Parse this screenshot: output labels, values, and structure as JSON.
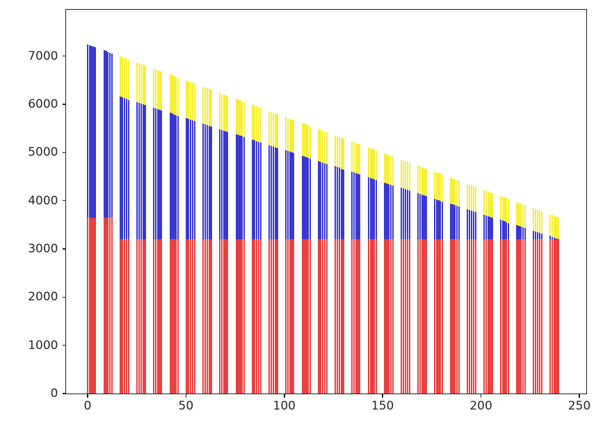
{
  "figure": {
    "background": "#ffffff"
  },
  "chart_data": {
    "type": "bar",
    "subtype": "grouped-stacked-thin-bars",
    "title": "",
    "xlabel": "",
    "ylabel": "",
    "grid": false,
    "legend": false,
    "x_ticks": [
      0,
      50,
      100,
      150,
      200,
      250
    ],
    "y_ticks": [
      0,
      1000,
      2000,
      3000,
      4000,
      5000,
      6000,
      7000
    ],
    "xlim": [
      -11.3,
      253.9
    ],
    "ylim": [
      -14,
      7975
    ],
    "bars_per_group": 5,
    "bar_pitch": 1.0,
    "bar_width": 0.8,
    "series_names": [
      "red-bottom",
      "blue-middle",
      "yellow-top"
    ],
    "series_colors": {
      "bottom": "#e84141",
      "middle": "#3939cf",
      "top": "#f5ef3a"
    },
    "axis_color": "#1c1c1c",
    "groups": [
      {
        "x0": 0.0,
        "red_top": 3648,
        "blue_tops": [
          7246,
          7230,
          7214,
          7198,
          7182
        ],
        "totals": [
          7246,
          7230,
          7214,
          7198,
          7182
        ]
      },
      {
        "x0": 8.4,
        "red_top": 3648,
        "blue_tops": [
          7120,
          7104,
          7088,
          7072,
          7056
        ],
        "totals": [
          7120,
          7104,
          7088,
          7072,
          7056
        ]
      },
      {
        "x0": 16.8,
        "red_top": 3201,
        "blue_tops": [
          6153,
          6138,
          6123,
          6108,
          6093
        ],
        "totals": [
          6994,
          6978,
          6962,
          6946,
          6930
        ]
      },
      {
        "x0": 25.2,
        "red_top": 3201,
        "blue_tops": [
          6042,
          6027,
          6012,
          5997,
          5982
        ],
        "totals": [
          6868,
          6852,
          6836,
          6820,
          6804
        ]
      },
      {
        "x0": 33.6,
        "red_top": 3201,
        "blue_tops": [
          5931,
          5916,
          5901,
          5886,
          5871
        ],
        "totals": [
          6742,
          6726,
          6710,
          6694,
          6678
        ]
      },
      {
        "x0": 42.0,
        "red_top": 3201,
        "blue_tops": [
          5820,
          5805,
          5790,
          5775,
          5760
        ],
        "totals": [
          6616,
          6600,
          6584,
          6568,
          6552
        ]
      },
      {
        "x0": 50.4,
        "red_top": 3201,
        "blue_tops": [
          5709,
          5694,
          5679,
          5664,
          5649
        ],
        "totals": [
          6490,
          6474,
          6458,
          6442,
          6426
        ]
      },
      {
        "x0": 58.8,
        "red_top": 3201,
        "blue_tops": [
          5598,
          5583,
          5568,
          5553,
          5538
        ],
        "totals": [
          6364,
          6348,
          6332,
          6316,
          6300
        ]
      },
      {
        "x0": 67.2,
        "red_top": 3201,
        "blue_tops": [
          5487,
          5472,
          5457,
          5442,
          5427
        ],
        "totals": [
          6238,
          6222,
          6206,
          6190,
          6174
        ]
      },
      {
        "x0": 75.6,
        "red_top": 3201,
        "blue_tops": [
          5376,
          5361,
          5346,
          5331,
          5316
        ],
        "totals": [
          6112,
          6096,
          6080,
          6064,
          6048
        ]
      },
      {
        "x0": 84.0,
        "red_top": 3201,
        "blue_tops": [
          5265,
          5250,
          5235,
          5220,
          5205
        ],
        "totals": [
          5986,
          5970,
          5954,
          5938,
          5922
        ]
      },
      {
        "x0": 92.4,
        "red_top": 3201,
        "blue_tops": [
          5154,
          5139,
          5124,
          5109,
          5094
        ],
        "totals": [
          5860,
          5844,
          5828,
          5812,
          5796
        ]
      },
      {
        "x0": 100.8,
        "red_top": 3201,
        "blue_tops": [
          5043,
          5028,
          5013,
          4998,
          4983
        ],
        "totals": [
          5734,
          5718,
          5702,
          5686,
          5670
        ]
      },
      {
        "x0": 109.2,
        "red_top": 3201,
        "blue_tops": [
          4932,
          4917,
          4902,
          4887,
          4872
        ],
        "totals": [
          5608,
          5592,
          5576,
          5560,
          5544
        ]
      },
      {
        "x0": 117.6,
        "red_top": 3201,
        "blue_tops": [
          4821,
          4806,
          4791,
          4776,
          4761
        ],
        "totals": [
          5482,
          5466,
          5450,
          5434,
          5418
        ]
      },
      {
        "x0": 126.0,
        "red_top": 3201,
        "blue_tops": [
          4710,
          4695,
          4680,
          4665,
          4650
        ],
        "totals": [
          5356,
          5340,
          5324,
          5308,
          5292
        ]
      },
      {
        "x0": 134.4,
        "red_top": 3201,
        "blue_tops": [
          4599,
          4584,
          4569,
          4554,
          4539
        ],
        "totals": [
          5230,
          5214,
          5198,
          5182,
          5166
        ]
      },
      {
        "x0": 142.8,
        "red_top": 3201,
        "blue_tops": [
          4488,
          4473,
          4458,
          4443,
          4428
        ],
        "totals": [
          5104,
          5088,
          5072,
          5056,
          5040
        ]
      },
      {
        "x0": 151.2,
        "red_top": 3201,
        "blue_tops": [
          4377,
          4362,
          4347,
          4332,
          4317
        ],
        "totals": [
          4978,
          4962,
          4946,
          4930,
          4914
        ]
      },
      {
        "x0": 159.6,
        "red_top": 3201,
        "blue_tops": [
          4266,
          4251,
          4236,
          4221,
          4206
        ],
        "totals": [
          4852,
          4836,
          4820,
          4804,
          4788
        ]
      },
      {
        "x0": 168.0,
        "red_top": 3201,
        "blue_tops": [
          4155,
          4140,
          4125,
          4110,
          4095
        ],
        "totals": [
          4726,
          4710,
          4694,
          4678,
          4662
        ]
      },
      {
        "x0": 176.4,
        "red_top": 3201,
        "blue_tops": [
          4044,
          4029,
          4014,
          3999,
          3984
        ],
        "totals": [
          4600,
          4584,
          4568,
          4552,
          4536
        ]
      },
      {
        "x0": 184.8,
        "red_top": 3201,
        "blue_tops": [
          3933,
          3918,
          3903,
          3888,
          3873
        ],
        "totals": [
          4474,
          4458,
          4442,
          4426,
          4410
        ]
      },
      {
        "x0": 193.2,
        "red_top": 3201,
        "blue_tops": [
          3822,
          3807,
          3792,
          3777,
          3762
        ],
        "totals": [
          4348,
          4332,
          4316,
          4300,
          4284
        ]
      },
      {
        "x0": 201.6,
        "red_top": 3201,
        "blue_tops": [
          3711,
          3696,
          3681,
          3666,
          3651
        ],
        "totals": [
          4222,
          4206,
          4190,
          4174,
          4158
        ]
      },
      {
        "x0": 210.0,
        "red_top": 3201,
        "blue_tops": [
          3600,
          3585,
          3570,
          3555,
          3540
        ],
        "totals": [
          4096,
          4080,
          4064,
          4048,
          4032
        ]
      },
      {
        "x0": 218.4,
        "red_top": 3201,
        "blue_tops": [
          3489,
          3474,
          3459,
          3444,
          3429
        ],
        "totals": [
          3970,
          3954,
          3938,
          3922,
          3906
        ]
      },
      {
        "x0": 226.8,
        "red_top": 3201,
        "blue_tops": [
          3378,
          3363,
          3348,
          3333,
          3318
        ],
        "totals": [
          3844,
          3828,
          3812,
          3796,
          3780
        ]
      },
      {
        "x0": 235.2,
        "red_top": 3201,
        "blue_tops": [
          3267,
          3252,
          3237,
          3222,
          3207
        ],
        "totals": [
          3718,
          3702,
          3686,
          3670,
          3654
        ]
      }
    ]
  }
}
